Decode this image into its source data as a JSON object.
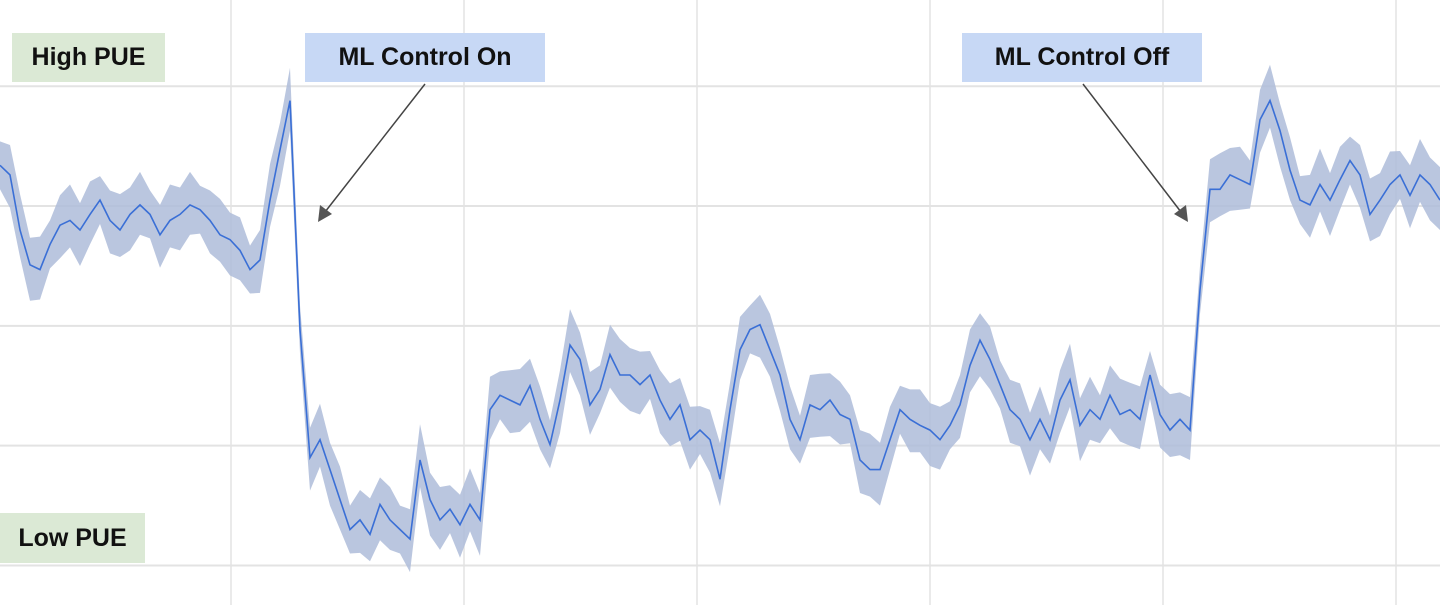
{
  "chart_data": {
    "type": "line",
    "title": "",
    "xlabel": "",
    "ylabel": "",
    "grid": true,
    "y_gridlines": [
      0,
      1,
      2,
      3,
      4
    ],
    "ylim": [
      -0.33,
      4.72
    ],
    "xlim": [
      0,
      144
    ],
    "series": [
      {
        "values": [
          3.34,
          3.26,
          2.8,
          2.51,
          2.47,
          2.68,
          2.84,
          2.88,
          2.8,
          2.93,
          3.05,
          2.88,
          2.8,
          2.93,
          3.01,
          2.93,
          2.76,
          2.88,
          2.93,
          3.01,
          2.97,
          2.88,
          2.76,
          2.72,
          2.63,
          2.47,
          2.55,
          3.05,
          3.47,
          3.88,
          1.97,
          0.9,
          1.05,
          0.8,
          0.55,
          0.3,
          0.38,
          0.26,
          0.51,
          0.38,
          0.3,
          0.22,
          0.88,
          0.55,
          0.38,
          0.47,
          0.34,
          0.51,
          0.38,
          1.3,
          1.42,
          1.38,
          1.34,
          1.5,
          1.22,
          1.01,
          1.38,
          1.84,
          1.72,
          1.34,
          1.47,
          1.76,
          1.59,
          1.59,
          1.51,
          1.59,
          1.38,
          1.22,
          1.34,
          1.05,
          1.13,
          1.05,
          0.72,
          1.3,
          1.8,
          1.97,
          2.01,
          1.8,
          1.59,
          1.22,
          1.05,
          1.34,
          1.3,
          1.38,
          1.26,
          1.22,
          0.88,
          0.8,
          0.8,
          1.05,
          1.3,
          1.22,
          1.17,
          1.13,
          1.05,
          1.17,
          1.34,
          1.67,
          1.88,
          1.72,
          1.51,
          1.3,
          1.22,
          1.05,
          1.22,
          1.05,
          1.38,
          1.55,
          1.17,
          1.3,
          1.22,
          1.42,
          1.26,
          1.3,
          1.22,
          1.59,
          1.26,
          1.13,
          1.22,
          1.13,
          2.3,
          3.14,
          3.14,
          3.26,
          3.22,
          3.18,
          3.72,
          3.88,
          3.63,
          3.3,
          3.05,
          3.01,
          3.18,
          3.05,
          3.22,
          3.38,
          3.26,
          2.93,
          3.05,
          3.18,
          3.26,
          3.09,
          3.26,
          3.18,
          3.05
        ],
        "band": 0.25,
        "color": "#3a6fd6",
        "band_color": "#aebcd9"
      }
    ],
    "annotations": {
      "high": "High PUE",
      "low": "Low PUE",
      "on": "ML Control On",
      "off": "ML Control Off"
    },
    "colors": {
      "green_label": "#dbe9d5",
      "blue_label": "#c7d8f5",
      "arrow": "#444444",
      "grid": "#e3e3e3"
    }
  }
}
